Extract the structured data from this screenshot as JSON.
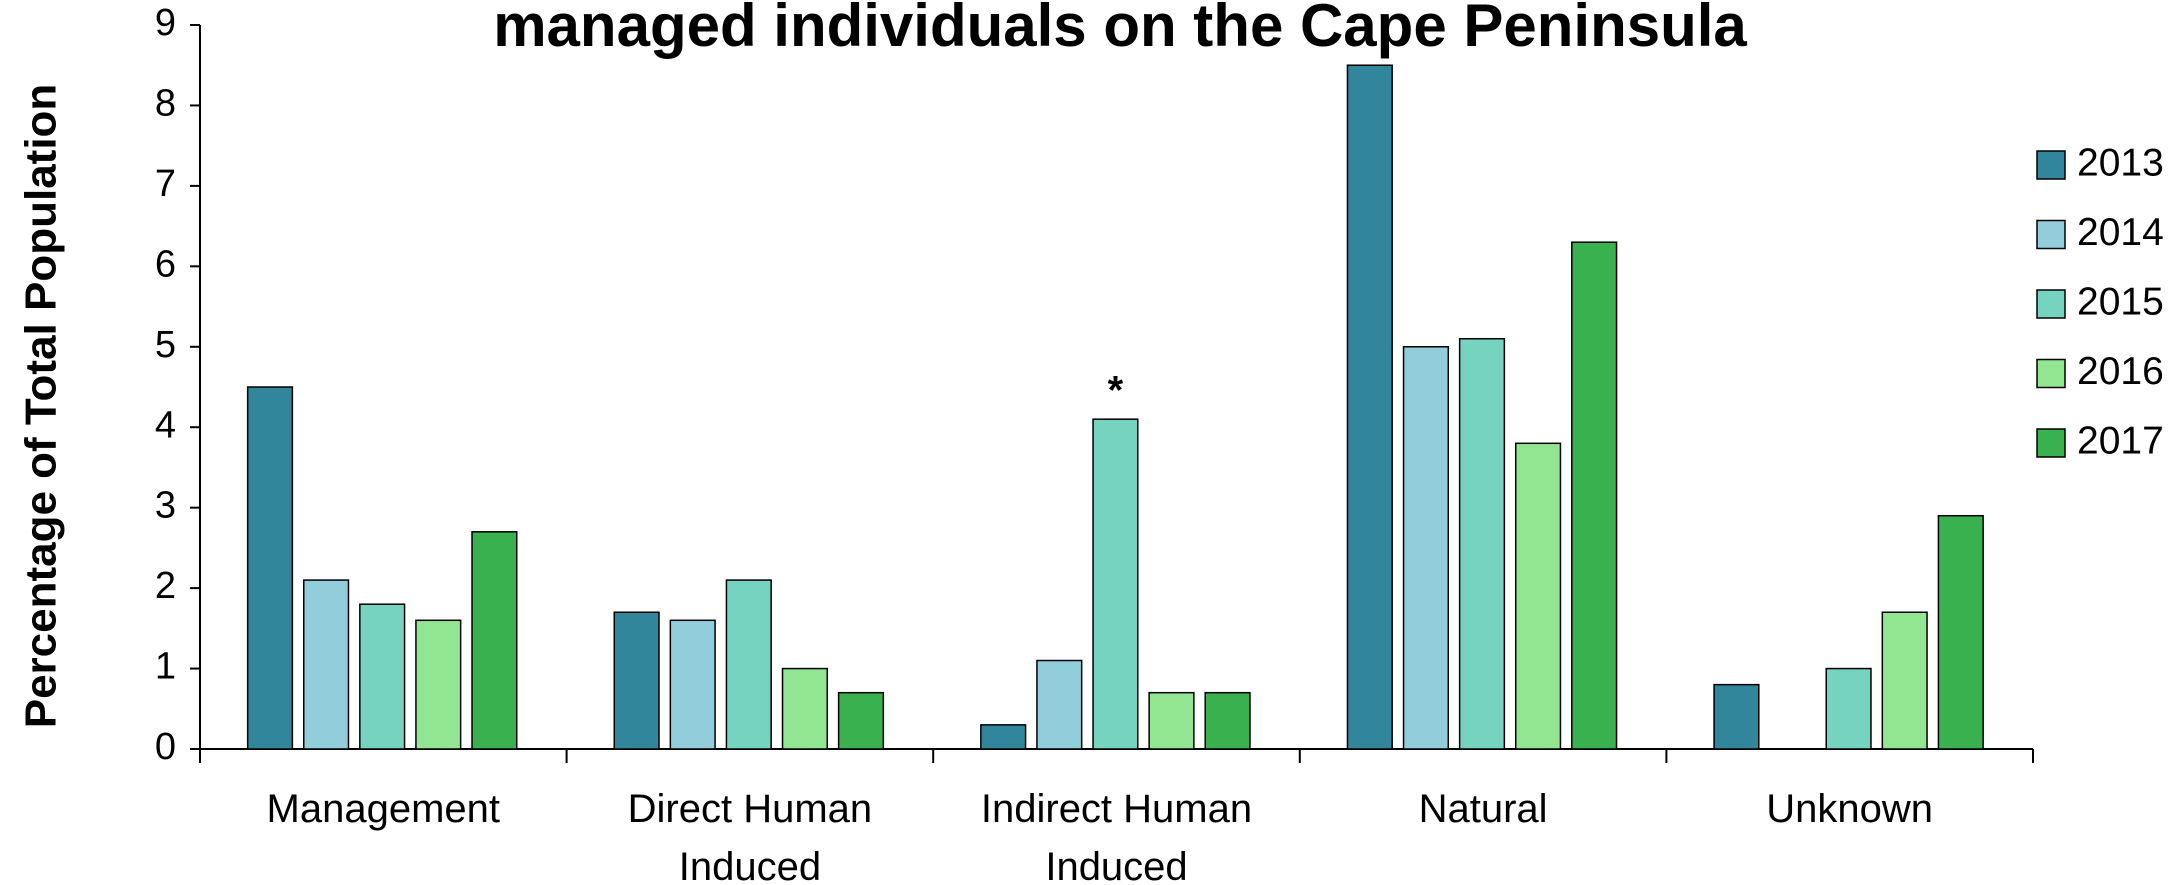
{
  "chart_data": {
    "type": "bar",
    "title": "managed individuals on the Cape Peninsula",
    "y_label": "Percentage of Total Population",
    "categories": [
      "Management",
      "Direct Human Induced",
      "Indirect Human Induced",
      "Natural",
      "Unknown"
    ],
    "series": [
      {
        "name": "2013",
        "color": "#31869b",
        "values": [
          4.5,
          1.7,
          0.3,
          8.5,
          0.8
        ]
      },
      {
        "name": "2014",
        "color": "#92cddc",
        "values": [
          2.1,
          1.6,
          1.1,
          5.0,
          0
        ]
      },
      {
        "name": "2015",
        "color": "#76d3bf",
        "values": [
          1.8,
          2.1,
          4.1,
          5.1,
          1.0
        ]
      },
      {
        "name": "2016",
        "color": "#92e591",
        "values": [
          1.6,
          1.0,
          0.7,
          3.8,
          1.7
        ]
      },
      {
        "name": "2017",
        "color": "#38b14e",
        "values": [
          2.7,
          0.7,
          0.7,
          6.3,
          2.9
        ]
      }
    ],
    "annotation": "*",
    "ylim": [
      0,
      9
    ],
    "yticks": [
      0,
      1,
      2,
      3,
      4,
      5,
      6,
      7,
      8,
      9
    ],
    "grid": false,
    "legend": "right"
  }
}
